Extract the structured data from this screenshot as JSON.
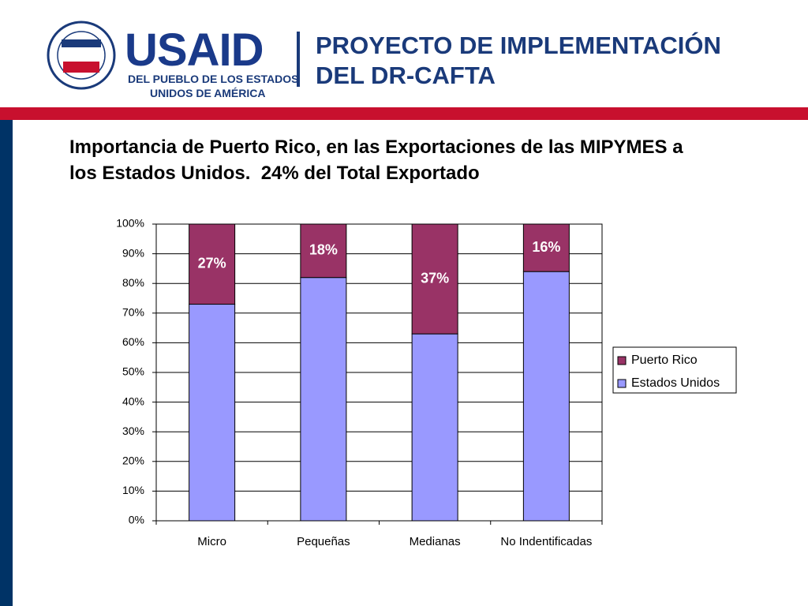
{
  "header": {
    "logo": "USAID",
    "tagline": [
      "DEL PUEBLO DE LOS ESTADOS",
      "UNIDOS DE AMÉRICA"
    ],
    "project": [
      "PROYECTO DE IMPLEMENTACIÓN",
      "DEL DR-CAFTA"
    ]
  },
  "chart_data": {
    "type": "stacked_bar",
    "title": "Importancia de Puerto Rico, en las Exportaciones de las MIPYMES a los Estados Unidos.  24% del Total Exportado",
    "categories": [
      "Micro",
      "Pequeñas",
      "Medianas",
      "No Indentificadas"
    ],
    "series": [
      {
        "name": "Estados Unidos",
        "color": "#9999ff",
        "values": [
          73,
          82,
          63,
          84
        ]
      },
      {
        "name": "Puerto Rico",
        "color": "#993366",
        "values": [
          27,
          18,
          37,
          16
        ],
        "value_labels": [
          "27%",
          "18%",
          "37%",
          "16%"
        ]
      }
    ],
    "ylim": [
      0,
      100
    ],
    "yticks": [
      {
        "value": 0,
        "label": "0%"
      },
      {
        "value": 10,
        "label": "10%"
      },
      {
        "value": 20,
        "label": "20%"
      },
      {
        "value": 30,
        "label": "30%"
      },
      {
        "value": 40,
        "label": "40%"
      },
      {
        "value": 50,
        "label": "50%"
      },
      {
        "value": 60,
        "label": "60%"
      },
      {
        "value": 70,
        "label": "70%"
      },
      {
        "value": 80,
        "label": "80%"
      },
      {
        "value": 90,
        "label": "90%"
      },
      {
        "value": 100,
        "label": "100%"
      }
    ],
    "grid": true,
    "legend": "right"
  }
}
